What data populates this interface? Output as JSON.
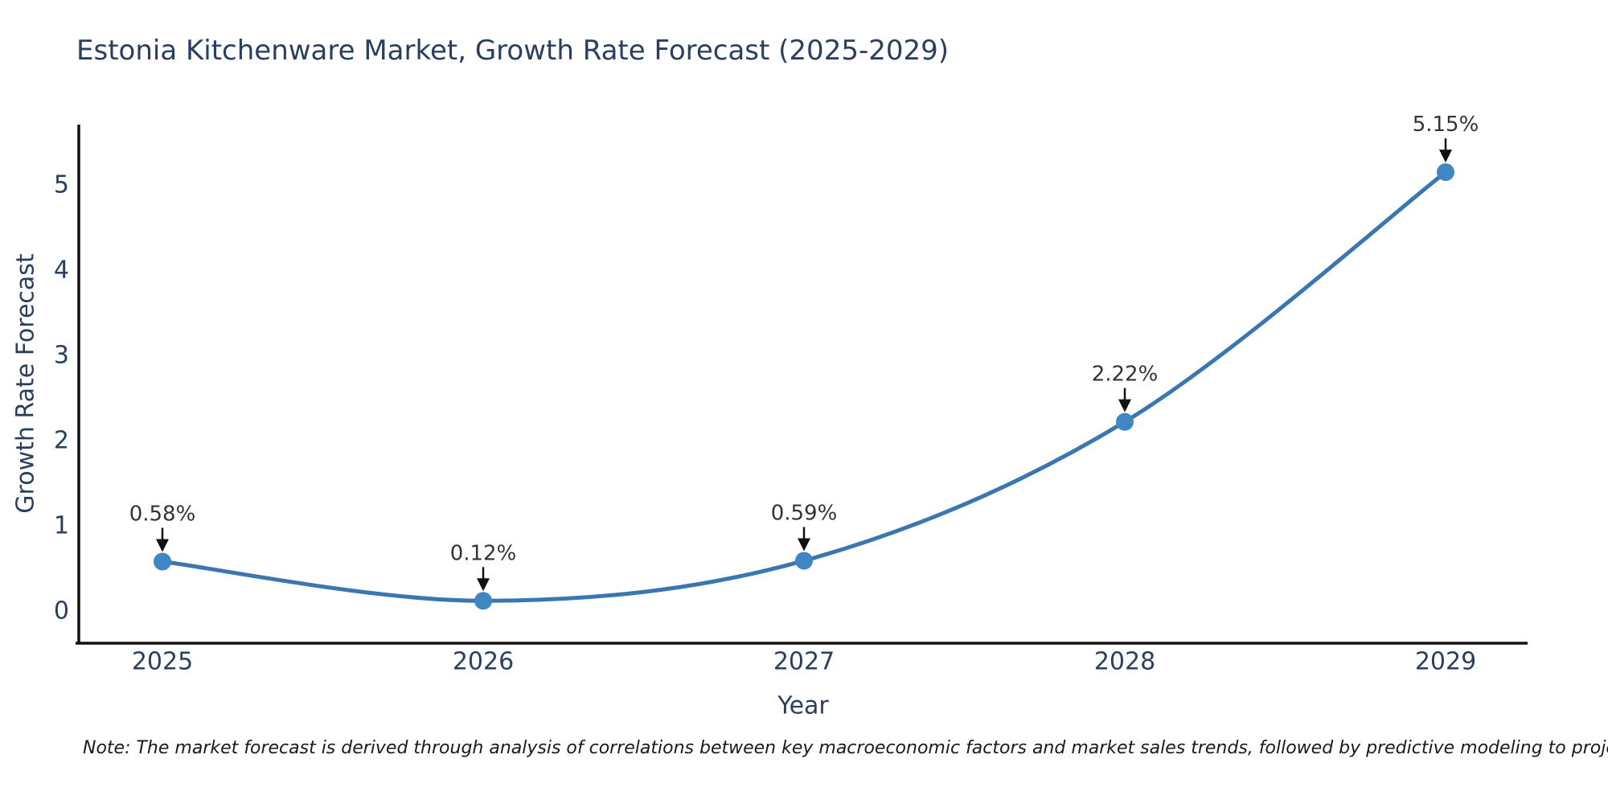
{
  "page": {
    "title": "Estonia Kitchenware Market, Growth Rate Forecast (2025-2029)",
    "footnote": "Note: The market forecast is derived through analysis of correlations between key macroeconomic factors and market sales trends, followed by predictive modeling to project future sales."
  },
  "chart_data": {
    "type": "line",
    "title": "Estonia Kitchenware Market, Growth Rate Forecast (2025-2029)",
    "x": [
      "2025",
      "2026",
      "2027",
      "2028",
      "2029"
    ],
    "series": [
      {
        "name": "Growth Rate Forecast",
        "values": [
          0.58,
          0.12,
          0.59,
          2.22,
          5.15
        ]
      }
    ],
    "point_labels": [
      "0.58%",
      "0.12%",
      "0.59%",
      "2.22%",
      "5.15%"
    ],
    "xlabel": "Year",
    "ylabel": "Growth Rate Forecast",
    "yticks": [
      0,
      1,
      2,
      3,
      4,
      5
    ],
    "ylim": [
      0,
      5.7
    ],
    "line_shape": "spline",
    "grid": false,
    "legend_position": "none",
    "colors": {
      "line": "#3a76b0",
      "marker": "#3e86c4",
      "axis": "#111111",
      "tick_text": "#2a3f5f",
      "annotation_text": "#333333",
      "arrow": "#111111",
      "background": "#ffffff"
    }
  }
}
